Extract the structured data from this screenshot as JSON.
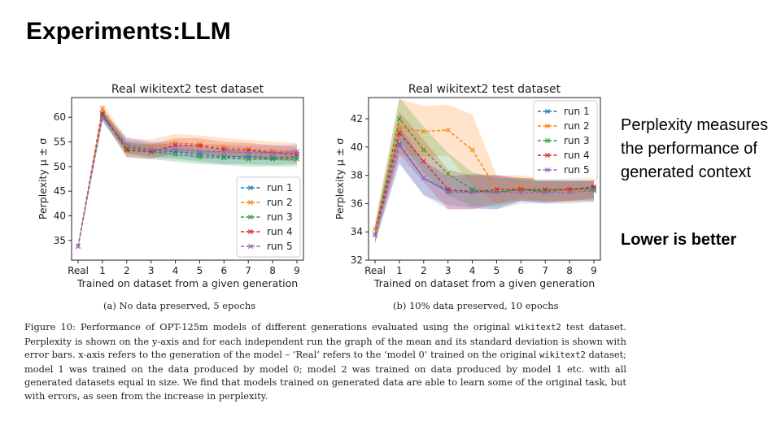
{
  "slide": {
    "title": "Experiments:LLM",
    "side_text": "Perplexity measures the performance of generated context",
    "side_bold": "Lower is better"
  },
  "figure": {
    "subcaption_a": "(a) No data preserved, 5 epochs",
    "subcaption_b": "(b) 10% data preserved, 10 epochs",
    "caption": {
      "p1": "Figure 10: Performance of OPT-125m models of different generations evaluated using the original ",
      "code1": "wikitext2",
      "p2": " test dataset. Perplexity is shown on the y-axis and for each independent run the graph of the mean and its standard deviation is shown with error bars. x-axis refers to the generation of the model – ‘Real’ refers to the ‘model 0’ trained on the original ",
      "code2": "wikitext2",
      "p3": " dataset; model 1 was trained on the data produced by model 0; model 2 was trained on data produced by model 1 etc. with all generated datasets equal in size. We find that models trained on generated data are able to learn some of the original task, but with errors, as seen from the increase in perplexity."
    }
  },
  "chart_data": [
    {
      "type": "line",
      "title": "Real wikitext2 test dataset",
      "xlabel": "Trained on dataset from a given generation",
      "ylabel": "Perplexity μ ± σ",
      "categories": [
        "Real",
        "1",
        "2",
        "3",
        "4",
        "5",
        "6",
        "7",
        "8",
        "9"
      ],
      "ylim": [
        31,
        64
      ],
      "yticks": [
        35,
        40,
        45,
        50,
        55,
        60
      ],
      "legend": "lower-right",
      "series": [
        {
          "name": "run 1",
          "color": "#1f77b4",
          "values": [
            33.8,
            60.5,
            54.0,
            53.3,
            53.0,
            52.5,
            52.0,
            52.0,
            51.8,
            52.0
          ],
          "std": [
            0.3,
            1.0,
            1.5,
            1.5,
            1.5,
            1.5,
            1.5,
            1.5,
            1.5,
            1.5
          ]
        },
        {
          "name": "run 2",
          "color": "#ff7f0e",
          "values": [
            33.8,
            61.8,
            54.2,
            54.0,
            54.8,
            54.5,
            54.0,
            53.6,
            53.2,
            53.0
          ],
          "std": [
            0.3,
            1.0,
            1.5,
            1.5,
            1.8,
            1.8,
            1.8,
            1.8,
            1.8,
            1.8
          ]
        },
        {
          "name": "run 3",
          "color": "#2ca02c",
          "values": [
            33.8,
            60.3,
            53.5,
            53.0,
            52.5,
            52.0,
            51.8,
            51.5,
            51.5,
            51.5
          ],
          "std": [
            0.3,
            1.0,
            1.5,
            1.5,
            1.5,
            1.5,
            1.5,
            1.5,
            1.5,
            1.5
          ]
        },
        {
          "name": "run 4",
          "color": "#d62728",
          "values": [
            33.8,
            60.8,
            53.3,
            53.0,
            54.3,
            54.2,
            53.5,
            53.3,
            52.8,
            52.5
          ],
          "std": [
            0.3,
            1.0,
            1.5,
            1.5,
            1.5,
            1.5,
            1.5,
            1.5,
            1.5,
            1.5
          ]
        },
        {
          "name": "run 5",
          "color": "#9467bd",
          "values": [
            33.8,
            60.0,
            54.5,
            53.5,
            53.5,
            53.0,
            53.0,
            52.8,
            52.8,
            53.0
          ],
          "std": [
            0.3,
            1.0,
            1.5,
            1.5,
            1.5,
            1.5,
            1.5,
            1.5,
            1.5,
            1.5
          ]
        }
      ]
    },
    {
      "type": "line",
      "title": "Real wikitext2 test dataset",
      "xlabel": "Trained on dataset from a given generation",
      "ylabel": "Perplexity μ ± σ",
      "categories": [
        "Real",
        "1",
        "2",
        "3",
        "4",
        "5",
        "6",
        "7",
        "8",
        "9"
      ],
      "ylim": [
        32,
        43.5
      ],
      "yticks": [
        32,
        34,
        36,
        38,
        40,
        42
      ],
      "legend": "upper-right",
      "series": [
        {
          "name": "run 1",
          "color": "#1f77b4",
          "values": [
            33.8,
            40.2,
            37.8,
            36.9,
            36.9,
            36.8,
            37.0,
            36.8,
            37.0,
            37.1
          ],
          "std": [
            0.6,
            1.3,
            1.2,
            1.0,
            1.2,
            1.2,
            0.8,
            0.8,
            0.8,
            0.8
          ]
        },
        {
          "name": "run 2",
          "color": "#ff7f0e",
          "values": [
            34.2,
            41.4,
            41.1,
            41.2,
            39.8,
            37.0,
            37.2,
            36.9,
            36.9,
            37.0
          ],
          "std": [
            0.6,
            2.0,
            1.8,
            1.8,
            2.5,
            1.0,
            0.8,
            0.8,
            0.8,
            0.8
          ]
        },
        {
          "name": "run 3",
          "color": "#2ca02c",
          "values": [
            33.8,
            42.0,
            39.8,
            38.1,
            37.0,
            36.8,
            37.0,
            36.9,
            37.0,
            37.0
          ],
          "std": [
            0.6,
            1.5,
            1.6,
            1.5,
            1.2,
            1.0,
            0.8,
            0.8,
            0.8,
            0.8
          ]
        },
        {
          "name": "run 4",
          "color": "#d62728",
          "values": [
            33.8,
            41.0,
            39.0,
            37.0,
            36.8,
            37.0,
            37.0,
            37.0,
            37.0,
            37.2
          ],
          "std": [
            0.6,
            1.5,
            1.5,
            1.4,
            1.2,
            1.0,
            0.8,
            0.8,
            0.8,
            0.8
          ]
        },
        {
          "name": "run 5",
          "color": "#9467bd",
          "values": [
            33.8,
            40.1,
            37.8,
            36.8,
            36.8,
            36.8,
            36.8,
            36.8,
            36.8,
            36.9
          ],
          "std": [
            0.6,
            1.3,
            1.2,
            1.2,
            1.2,
            1.2,
            0.8,
            0.8,
            0.8,
            0.8
          ]
        }
      ]
    }
  ]
}
